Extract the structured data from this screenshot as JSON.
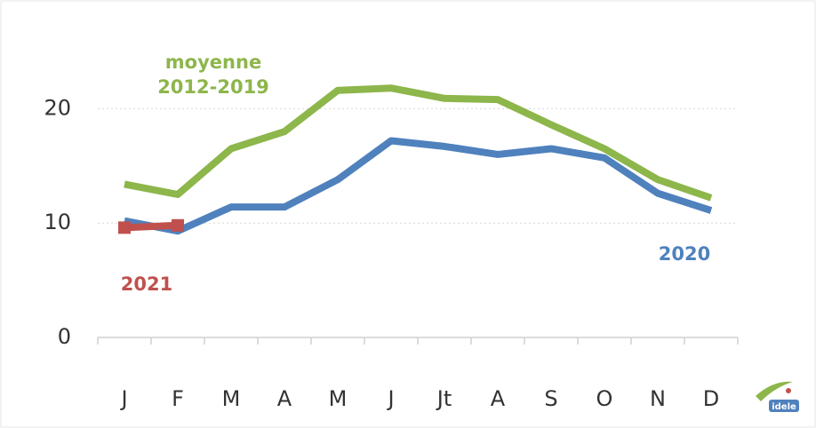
{
  "chart_data": {
    "type": "line",
    "categories": [
      "J",
      "F",
      "M",
      "A",
      "M",
      "J",
      "Jt",
      "A",
      "S",
      "O",
      "N",
      "D"
    ],
    "series": [
      {
        "name": "moyenne 2012-2019",
        "color": "#8db64b",
        "values": [
          13.4,
          12.5,
          16.5,
          18.0,
          21.6,
          21.8,
          20.9,
          20.8,
          18.6,
          16.5,
          13.8,
          12.2
        ]
      },
      {
        "name": "2020",
        "color": "#4f81bd",
        "values": [
          10.2,
          9.3,
          11.4,
          11.4,
          13.8,
          17.2,
          16.7,
          16.0,
          16.5,
          15.7,
          12.6,
          11.1
        ]
      },
      {
        "name": "2021",
        "color": "#c0504d",
        "marker": "square",
        "values": [
          9.6,
          9.8,
          null,
          null,
          null,
          null,
          null,
          null,
          null,
          null,
          null,
          null
        ]
      }
    ],
    "ylim": [
      0,
      25
    ],
    "yticks": [
      0,
      10,
      20
    ],
    "grid": true,
    "logo": "idele"
  }
}
